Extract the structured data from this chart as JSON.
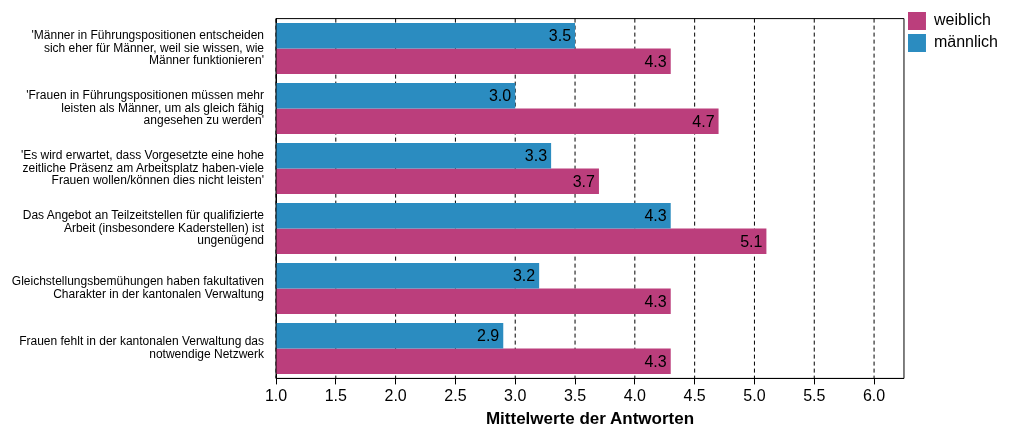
{
  "chart_data": {
    "type": "bar",
    "orientation": "horizontal",
    "xlabel": "Mittelwerte der Antworten",
    "categories": [
      "'Männer in Führungspositionen entscheiden sich eher für Männer, weil sie wissen, wie Männer funktionieren'",
      "'Frauen in Führungspositionen müssen mehr leisten als Männer, um als gleich fähig angesehen zu werden'",
      "'Es wird erwartet, dass Vorgesetzte eine hohe zeitliche Präsenz am Arbeitsplatz haben-viele Frauen wollen/können dies nicht leisten'",
      "Das Angebot an Teilzeitstellen für qualifizierte Arbeit (insbesondere Kaderstellen) ist ungenügend",
      "Gleichstellungsbemühungen haben fakultativen Charakter in der kantonalen Verwaltung",
      "Frauen fehlt in der kantonalen Verwaltung das notwendige Netzwerk"
    ],
    "series": [
      {
        "name": "männlich",
        "color": "#2b8cc0",
        "values": [
          3.5,
          3.0,
          3.3,
          4.3,
          3.2,
          2.9
        ],
        "value_labels": [
          "3.5",
          "3.0",
          "3.3",
          "4.3",
          "3.2",
          "2.9"
        ]
      },
      {
        "name": "weiblich",
        "color": "#bb3e7c",
        "values": [
          4.3,
          4.7,
          3.7,
          5.1,
          4.3,
          4.3
        ],
        "value_labels": [
          "4.3",
          "4.7",
          "3.7",
          "5.1",
          "4.3",
          "4.3"
        ]
      }
    ],
    "xlim": [
      1.0,
      6.25
    ],
    "xticks": [
      {
        "value": 1,
        "label": "1.0"
      },
      {
        "value": 1.5,
        "label": "1.5"
      },
      {
        "value": 2,
        "label": "2.0"
      },
      {
        "value": 2.5,
        "label": "2.5"
      },
      {
        "value": 3,
        "label": "3.0"
      },
      {
        "value": 3.5,
        "label": "3.5"
      },
      {
        "value": 4,
        "label": "4.0"
      },
      {
        "value": 4.5,
        "label": "4.5"
      },
      {
        "value": 5,
        "label": "5.0"
      },
      {
        "value": 5.5,
        "label": "5.5"
      },
      {
        "value": 6,
        "label": "6.0"
      }
    ],
    "grid": "x",
    "legend": "top right"
  }
}
